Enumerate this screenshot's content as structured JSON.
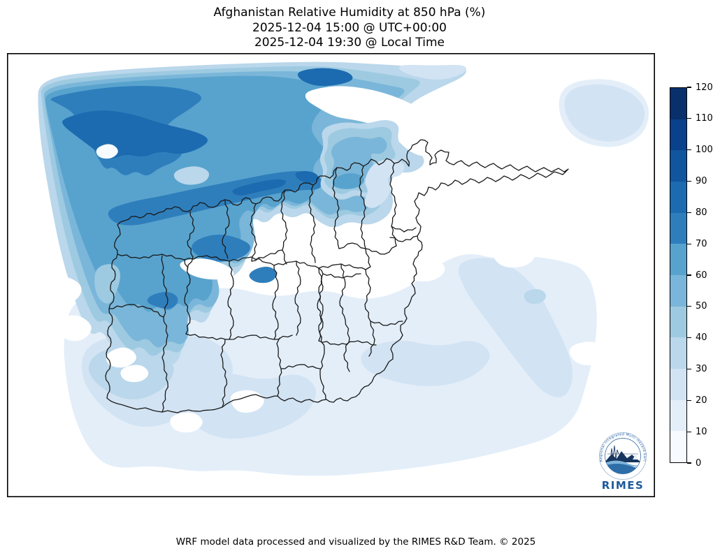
{
  "title": {
    "line1": "Afghanistan Relative Humidity at 850 hPa (%)",
    "line2": "2025-12-04 15:00 @ UTC+00:00",
    "line3": "2025-12-04 19:30 @ Local Time"
  },
  "footer": "WRF model data processed and visualized by the RIMES R&D Team. © 2025",
  "logo": {
    "name": "RIMES",
    "ring_text": "Regional Integrated Multi-Hazard Early Warning System"
  },
  "colorbar": {
    "min": 0,
    "max": 120,
    "step": 10,
    "tick_labels": [
      "0",
      "10",
      "20",
      "30",
      "40",
      "50",
      "60",
      "70",
      "80",
      "90",
      "100",
      "110",
      "120"
    ],
    "band_colors": [
      "#f7fbff",
      "#e3eef9",
      "#d2e3f3",
      "#bad7eb",
      "#9dcae1",
      "#7ab6d9",
      "#58a3ce",
      "#2f7ebc",
      "#1c6bb0",
      "#10559e",
      "#09418c",
      "#08306b"
    ]
  },
  "chart_data": {
    "type": "filled-contour-map",
    "title": "Afghanistan Relative Humidity at 850 hPa (%)",
    "variable": "Relative Humidity",
    "pressure_level": "850 hPa",
    "unit": "%",
    "valid_time_utc": "2025-12-04 15:00 @ UTC+00:00",
    "valid_time_local": "2025-12-04 19:30 @ Local Time",
    "model": "WRF",
    "colormap": "Blues (sequential, 12 discrete bands)",
    "colorbar_range": [
      0,
      120
    ],
    "contour_interval": 10,
    "legend_position": "right",
    "map_overlay": "Afghanistan province boundaries (black)",
    "region_values": [
      {
        "area": "far northwest corner of domain (NE Iran / Turkmenistan)",
        "humidity_pct": "70-90"
      },
      {
        "area": "north-central domain north of Afghan border",
        "humidity_pct": "50-80"
      },
      {
        "area": "band along northwest Afghan border (Badghis-Faryab-Balkh)",
        "humidity_pct": "70-90"
      },
      {
        "area": "Herat / western Afghanistan",
        "humidity_pct": "40-70"
      },
      {
        "area": "northeast pocket (Kunduz-Takhar)",
        "humidity_pct": "30-70"
      },
      {
        "area": "central highlands and Kabul region",
        "humidity_pct": "0-10"
      },
      {
        "area": "southwest lowlands (Farah-Nimroz-Helmand-Kandahar)",
        "humidity_pct": "10-40"
      },
      {
        "area": "southeast and eastern domain",
        "humidity_pct": "0-30"
      },
      {
        "area": "top-right corner of domain (Pamir)",
        "humidity_pct": "10-30"
      },
      {
        "area": "mid-right diagonal band",
        "humidity_pct": "20-30"
      }
    ]
  }
}
